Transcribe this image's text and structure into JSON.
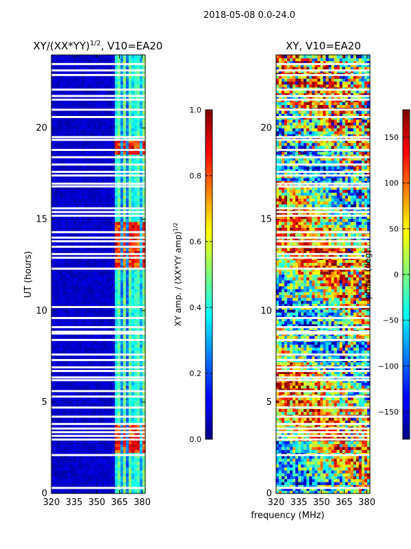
{
  "figure": {
    "suptitle": "2018-05-08 0.0-24.0",
    "xlabel": "frequency (MHz)"
  },
  "chart_data": [
    {
      "type": "heatmap",
      "title": "XY/(XX*YY)",
      "title_exponent": "1/2",
      "title_suffix": ", V10=EA20",
      "xlabel": "",
      "ylabel": "UT (hours)",
      "xlim": [
        320,
        382
      ],
      "ylim": [
        0,
        24
      ],
      "xticks": [
        320,
        335,
        350,
        365,
        380
      ],
      "yticks": [
        0,
        5,
        10,
        15,
        20
      ],
      "colormap": "jet",
      "colorbar": {
        "label": "XY amp. / (XX*YY amp)",
        "label_exponent": "1/2",
        "range": [
          0.0,
          1.0
        ],
        "ticks": [
          "0.0",
          "0.2",
          "0.4",
          "0.6",
          "0.8",
          "1.0"
        ],
        "tick_values": [
          0.0,
          0.2,
          0.4,
          0.6,
          0.8,
          1.0
        ]
      },
      "gaps_ut": [
        0.3,
        2.1,
        2.95,
        3.15,
        3.35,
        3.55,
        3.8,
        4.2,
        4.7,
        5.3,
        5.6,
        6.2,
        6.35,
        6.7,
        6.9,
        7.3,
        7.6,
        8.4,
        8.75,
        8.85,
        9.1,
        9.6,
        10.2,
        12.3,
        12.9,
        13.1,
        13.5,
        13.8,
        14.0,
        14.3,
        15.2,
        15.4,
        15.6,
        16.8,
        16.95,
        17.4,
        17.6,
        18.0,
        18.4,
        18.8,
        19.35,
        19.5,
        20.6,
        21.0,
        21.55,
        21.75,
        22.1,
        22.9,
        23.15,
        23.5
      ],
      "bright_bands_ut": [
        [
          2.2,
          3.8
        ],
        [
          12.4,
          14.9
        ],
        [
          18.6,
          19.4
        ]
      ],
      "active_freq_range_mhz": [
        362,
        382
      ]
    },
    {
      "type": "heatmap",
      "title": "XY, V10=EA20",
      "xlabel": "",
      "ylabel": "",
      "xlim": [
        320,
        382
      ],
      "ylim": [
        0,
        24
      ],
      "xticks": [
        320,
        335,
        350,
        365,
        380
      ],
      "yticks": [
        0,
        5,
        10,
        15,
        20
      ],
      "colormap": "jet",
      "colorbar": {
        "label": "phase (deg)",
        "range": [
          -180,
          180
        ],
        "ticks": [
          "−150",
          "−100",
          "−50",
          "0",
          "50",
          "100",
          "150"
        ],
        "tick_values": [
          -150,
          -100,
          -50,
          0,
          50,
          100,
          150
        ]
      },
      "gaps_ut": [
        0.3,
        2.1,
        2.95,
        3.15,
        3.35,
        3.55,
        3.8,
        4.2,
        4.7,
        5.3,
        5.6,
        6.2,
        6.35,
        6.7,
        6.9,
        7.3,
        7.6,
        8.4,
        8.75,
        8.85,
        9.1,
        9.6,
        10.2,
        12.3,
        12.9,
        13.1,
        13.5,
        13.8,
        14.0,
        14.3,
        15.2,
        15.4,
        15.6,
        16.8,
        16.95,
        17.4,
        17.6,
        18.0,
        18.4,
        18.8,
        19.35,
        19.5,
        20.6,
        21.0,
        21.55,
        21.75,
        22.1,
        22.9,
        23.15,
        23.5
      ]
    }
  ]
}
